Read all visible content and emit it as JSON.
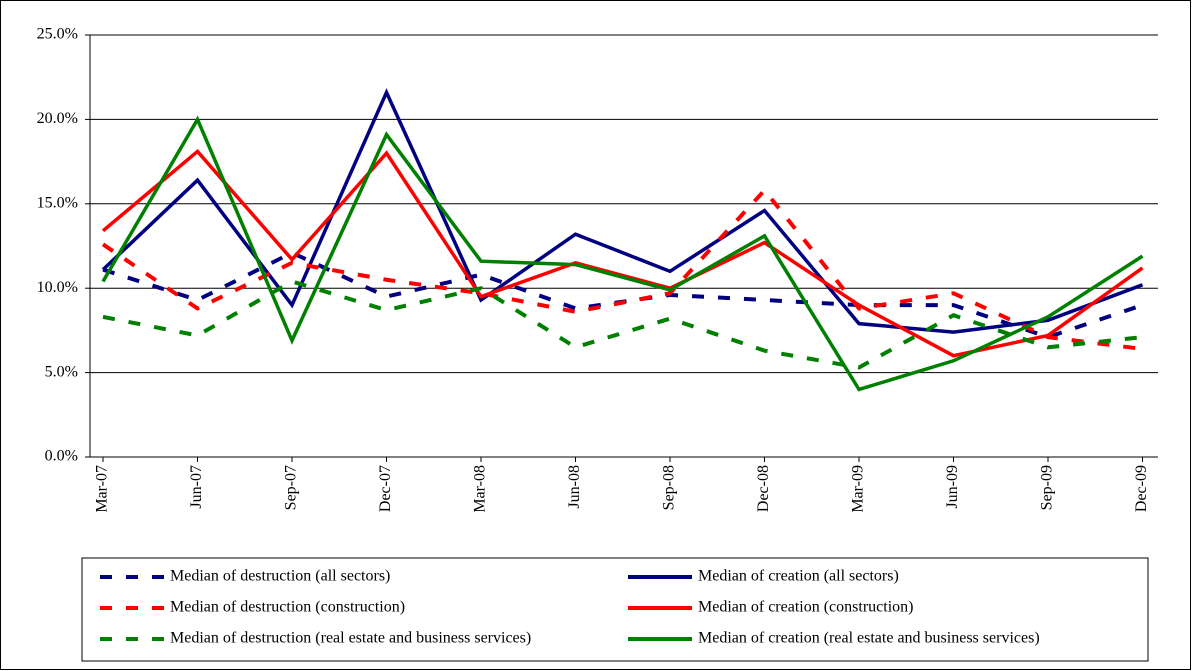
{
  "chart_data": {
    "type": "line",
    "categories": [
      "Mar-07",
      "Jun-07",
      "Sep-07",
      "Dec-07",
      "Mar-08",
      "Jun-08",
      "Sep-08",
      "Dec-08",
      "Mar-09",
      "Jun-09",
      "Sep-09",
      "Dec-09"
    ],
    "ylim": [
      0,
      25
    ],
    "yticks": [
      {
        "value": 0,
        "label": "0.0%"
      },
      {
        "value": 5,
        "label": "5.0%"
      },
      {
        "value": 10,
        "label": "10.0%"
      },
      {
        "value": 15,
        "label": "15.0%"
      },
      {
        "value": 20,
        "label": "20.0%"
      },
      {
        "value": 25,
        "label": "25.0%"
      }
    ],
    "grid": true,
    "series": [
      {
        "name": "Median of destruction (all sectors)",
        "color": "#000080",
        "dashed": true,
        "values": [
          11.1,
          9.3,
          12.1,
          9.5,
          10.8,
          8.8,
          9.6,
          9.3,
          9.0,
          9.0,
          7.1,
          9.0
        ]
      },
      {
        "name": "Median of creation (all sectors)",
        "color": "#000080",
        "dashed": false,
        "values": [
          11.1,
          16.4,
          9.0,
          21.6,
          9.3,
          13.2,
          11.0,
          14.6,
          7.9,
          7.4,
          8.1,
          10.2
        ]
      },
      {
        "name": "Median of destruction (construction)",
        "color": "#ff0000",
        "dashed": true,
        "values": [
          12.6,
          8.8,
          11.5,
          10.5,
          9.7,
          8.6,
          9.7,
          15.8,
          8.8,
          9.7,
          7.1,
          6.4
        ]
      },
      {
        "name": "Median of creation (construction)",
        "color": "#ff0000",
        "dashed": false,
        "values": [
          13.4,
          18.1,
          11.7,
          18.0,
          9.5,
          11.5,
          10.0,
          12.7,
          9.0,
          6.0,
          7.2,
          11.2
        ]
      },
      {
        "name": "Median of destruction (real estate and business services)",
        "color": "#008000",
        "dashed": true,
        "values": [
          8.3,
          7.2,
          10.4,
          8.7,
          10.0,
          6.5,
          8.2,
          6.3,
          5.3,
          8.4,
          6.5,
          7.1
        ]
      },
      {
        "name": "Median of creation (real estate and business services)",
        "color": "#008000",
        "dashed": false,
        "values": [
          10.4,
          20.0,
          6.9,
          19.1,
          11.6,
          11.4,
          9.9,
          13.1,
          4.0,
          5.7,
          8.3,
          11.9
        ]
      }
    ]
  }
}
